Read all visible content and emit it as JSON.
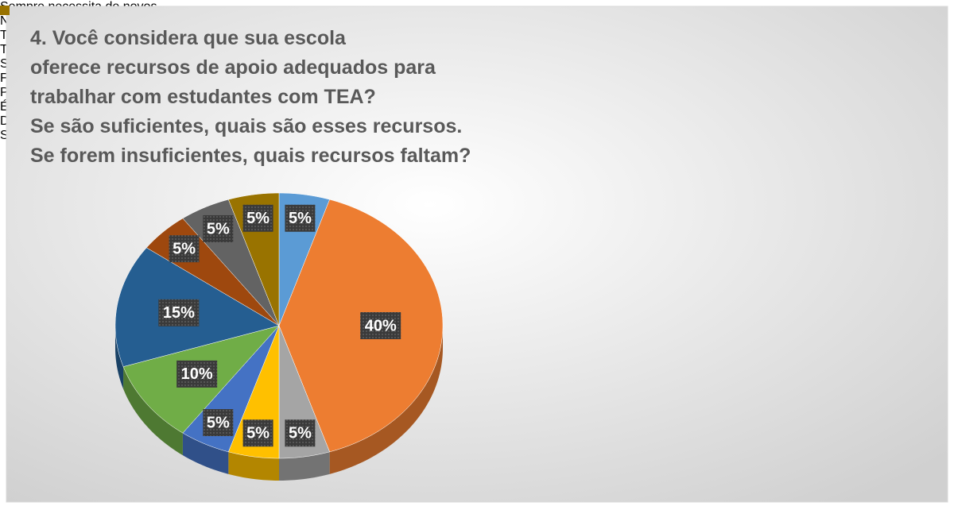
{
  "chart_data": {
    "type": "pie",
    "title": [
      "4. Você considera que sua escola",
      "oferece recursos de apoio adequados para",
      "trabalhar com estudantes com TEA?",
      "Se são suficientes, quais são esses recursos.",
      "Se forem insuficientes, quais recursos faltam?"
    ],
    "categories": [
      "Sempre necessita de novos",
      "Não, são insuficientes, oferece alguns/parcialmente",
      "Tenta, mas não oferece",
      "Tudo pode ser melhorado",
      "Se não tiver dá um jeito",
      "Falta de apoio/deveria ter mais apoio de um profissional",
      "Precisa adaptar, trazer ou confeccionar o próprio",
      "É responsabilidade do professor, não da escola",
      "Deveria ter uma sala de recursos",
      "Sim, tablet’s, jogos, brinquedos"
    ],
    "values": [
      5,
      40,
      5,
      5,
      5,
      10,
      15,
      5,
      5,
      5
    ],
    "value_labels": [
      "5%",
      "40%",
      "5%",
      "5%",
      "5%",
      "10%",
      "15%",
      "5%",
      "5%",
      "5%"
    ],
    "colors": [
      "#5b9bd5",
      "#ed7d31",
      "#a5a5a5",
      "#ffc000",
      "#4472c4",
      "#70ad47",
      "#255e91",
      "#9e480e",
      "#636363",
      "#997300"
    ],
    "legend": "right"
  }
}
